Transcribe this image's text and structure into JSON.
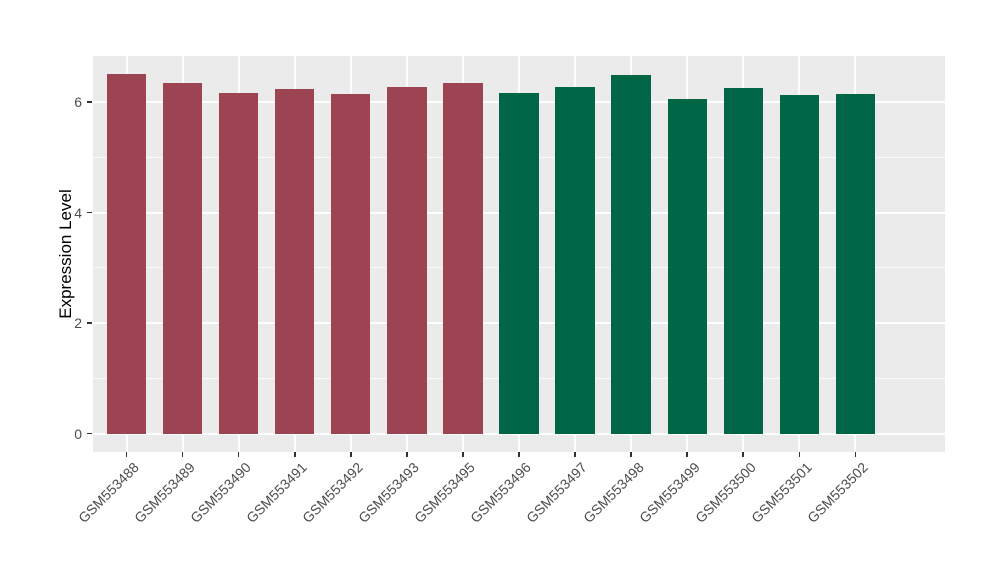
{
  "chart_data": {
    "type": "bar",
    "title": "",
    "xlabel": "",
    "ylabel": "Expression Level",
    "categories": [
      "GSM553488",
      "GSM553489",
      "GSM553490",
      "GSM553491",
      "GSM553492",
      "GSM553493",
      "GSM553495",
      "GSM553496",
      "GSM553497",
      "GSM553498",
      "GSM553499",
      "GSM553500",
      "GSM553501",
      "GSM553502"
    ],
    "values": [
      6.5,
      6.34,
      6.16,
      6.24,
      6.14,
      6.27,
      6.34,
      6.17,
      6.27,
      6.49,
      6.05,
      6.26,
      6.12,
      6.15
    ],
    "groups": [
      "A",
      "A",
      "A",
      "A",
      "A",
      "A",
      "A",
      "B",
      "B",
      "B",
      "B",
      "B",
      "B",
      "B"
    ],
    "group_colors": {
      "A": "#9C4451",
      "B": "#006746"
    },
    "yticks": [
      0,
      2,
      4,
      6
    ],
    "minor_yticks": [
      1,
      3,
      5
    ],
    "ylim": [
      -0.33,
      6.83
    ],
    "bar_rel_width": 0.7,
    "grid": true,
    "legend": false,
    "panel_bg": "#EBEBEB",
    "grid_color": "#FFFFFF",
    "tick_label_color": "#4D4D4D",
    "x_label_angle_deg": 45
  }
}
